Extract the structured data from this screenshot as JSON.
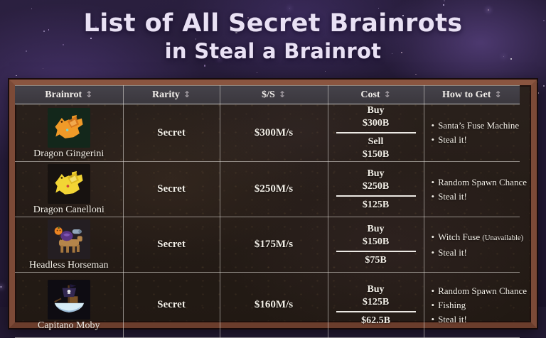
{
  "title": {
    "line1": "List of All Secret Brainrots",
    "line2": "in Steal a Brainrot"
  },
  "icons": {
    "sort": "↕",
    "bullet": "•"
  },
  "table": {
    "columns": [
      "Brainrot",
      "Rarity",
      "$/S",
      "Cost",
      "How to Get"
    ],
    "rows": [
      {
        "name": "Dragon Gingerini",
        "icon": "dragon-gingerini-icon",
        "rarity": "Secret",
        "income": "$300M/s",
        "cost": {
          "buy_label": "Buy",
          "buy_price": "$300B",
          "sell_label": "Sell",
          "sell_price": "$150B"
        },
        "how_to_get": [
          {
            "text": "Santa’s Fuse Machine"
          },
          {
            "text": "Steal it!"
          }
        ]
      },
      {
        "name": "Dragon Canelloni",
        "icon": "dragon-canelloni-icon",
        "rarity": "Secret",
        "income": "$250M/s",
        "cost": {
          "buy_label": "Buy",
          "buy_price": "$250B",
          "sell_price": "$125B"
        },
        "how_to_get": [
          {
            "text": "Random Spawn Chance"
          },
          {
            "text": "Steal it!"
          }
        ]
      },
      {
        "name": "Headless Horseman",
        "icon": "headless-horseman-icon",
        "rarity": "Secret",
        "income": "$175M/s",
        "cost": {
          "buy_label": "Buy",
          "buy_price": "$150B",
          "sell_price": "$75B"
        },
        "how_to_get": [
          {
            "text": "Witch Fuse",
            "note": "(Unavailable)"
          },
          {
            "text": "Steal it!"
          }
        ]
      },
      {
        "name": "Capitano Moby",
        "icon": "capitano-moby-icon",
        "rarity": "Secret",
        "income": "$160M/s",
        "cost": {
          "buy_label": "Buy",
          "buy_price": "$125B",
          "sell_price": "$62.5B"
        },
        "how_to_get": [
          {
            "text": "Random Spawn Chance"
          },
          {
            "text": "Fishing"
          },
          {
            "text": "Steal it!"
          }
        ]
      }
    ]
  },
  "colors": {
    "frame_wood": "#7c4a37",
    "table_background": "#251c17",
    "header_background": "#3a373d",
    "title_text": "#e9e1f4",
    "table_text": "#f2eee6",
    "grid_line": "#dedad6"
  }
}
